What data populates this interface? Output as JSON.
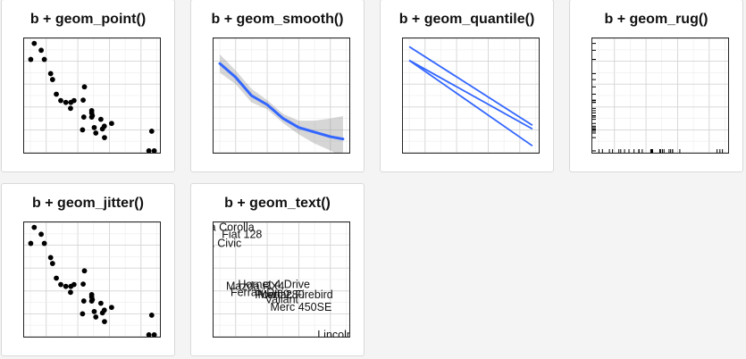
{
  "titles": {
    "point": "b + geom_point()",
    "smooth": "b + geom_smooth()",
    "quantile": "b + geom_quantile()",
    "rug": "b + geom_rug()",
    "jitter": "b + geom_jitter()",
    "text": "b + geom_text()"
  },
  "chart_data": [
    {
      "id": "point",
      "type": "scatter",
      "title": "b + geom_point()",
      "xlim": [
        1.3,
        5.6
      ],
      "ylim": [
        10,
        35
      ],
      "x": [
        1.51,
        1.62,
        1.84,
        1.94,
        2.14,
        2.2,
        2.32,
        2.46,
        2.62,
        2.77,
        2.78,
        2.88,
        3.15,
        3.17,
        3.19,
        3.21,
        3.44,
        3.44,
        3.44,
        3.46,
        3.52,
        3.57,
        3.73,
        3.78,
        3.84,
        3.845,
        4.07,
        5.25,
        5.34,
        5.42
      ],
      "y": [
        30.4,
        33.9,
        32.4,
        30.4,
        27.3,
        26.0,
        22.8,
        21.4,
        21.0,
        19.7,
        21.0,
        21.4,
        15.0,
        21.5,
        17.8,
        24.4,
        18.7,
        19.2,
        17.8,
        18.1,
        15.5,
        14.3,
        17.3,
        15.2,
        15.8,
        13.3,
        16.4,
        10.4,
        14.7,
        10.4
      ],
      "color": "#000000"
    },
    {
      "id": "smooth",
      "type": "line",
      "title": "b + geom_smooth()",
      "xlim": [
        1.3,
        5.6
      ],
      "ylim": [
        10,
        35
      ],
      "x": [
        1.5,
        2.0,
        2.5,
        3.0,
        3.5,
        4.0,
        4.5,
        5.0,
        5.4
      ],
      "y": [
        29.5,
        26.5,
        22.5,
        20.5,
        17.5,
        15.5,
        14.5,
        13.5,
        13.0
      ],
      "ci_upper": [
        31.5,
        28.0,
        24.0,
        21.5,
        18.5,
        17.0,
        17.0,
        17.5,
        18.0
      ],
      "ci_lower": [
        27.5,
        25.0,
        21.0,
        19.5,
        16.5,
        14.0,
        12.0,
        10.5,
        9.0
      ],
      "line_color": "#3366ff",
      "ribbon_color": "#999999"
    },
    {
      "id": "quantile",
      "type": "line",
      "title": "b + geom_quantile()",
      "xlim": [
        1.3,
        5.6
      ],
      "ylim": [
        10,
        35
      ],
      "series": [
        {
          "x": [
            1.5,
            5.4
          ],
          "y": [
            33.2,
            16.0
          ]
        },
        {
          "x": [
            1.5,
            5.4
          ],
          "y": [
            30.2,
            15.2
          ]
        },
        {
          "x": [
            1.5,
            5.4
          ],
          "y": [
            30.2,
            11.5
          ]
        }
      ],
      "line_color": "#3366ff"
    },
    {
      "id": "rug",
      "type": "scatter",
      "title": "b + geom_rug()",
      "xlim": [
        1.3,
        5.6
      ],
      "ylim": [
        10,
        35
      ],
      "x": [
        1.51,
        1.62,
        1.84,
        1.94,
        2.14,
        2.2,
        2.32,
        2.46,
        2.62,
        2.77,
        2.78,
        2.88,
        3.15,
        3.17,
        3.19,
        3.21,
        3.44,
        3.44,
        3.44,
        3.46,
        3.52,
        3.57,
        3.73,
        3.78,
        3.84,
        3.845,
        4.07,
        5.25,
        5.34,
        5.42
      ],
      "y": [
        30.4,
        33.9,
        32.4,
        30.4,
        27.3,
        26.0,
        22.8,
        21.4,
        21.0,
        19.7,
        21.0,
        21.4,
        15.0,
        21.5,
        17.8,
        24.4,
        18.7,
        19.2,
        17.8,
        18.1,
        15.5,
        14.3,
        17.3,
        15.2,
        15.8,
        13.3,
        16.4,
        10.4,
        14.7,
        10.4
      ],
      "color": "#000000"
    },
    {
      "id": "jitter",
      "type": "scatter",
      "title": "b + geom_jitter()",
      "xlim": [
        1.3,
        5.6
      ],
      "ylim": [
        10,
        35
      ],
      "x": [
        1.51,
        1.62,
        1.84,
        1.94,
        2.14,
        2.2,
        2.32,
        2.46,
        2.62,
        2.77,
        2.78,
        2.88,
        3.15,
        3.17,
        3.19,
        3.21,
        3.44,
        3.44,
        3.44,
        3.46,
        3.52,
        3.57,
        3.73,
        3.78,
        3.84,
        3.845,
        4.07,
        5.25,
        5.34,
        5.42
      ],
      "y": [
        30.4,
        33.9,
        32.4,
        30.4,
        27.3,
        26.0,
        22.8,
        21.4,
        21.0,
        19.7,
        21.0,
        21.4,
        15.0,
        21.5,
        17.8,
        24.4,
        18.7,
        19.2,
        17.8,
        18.1,
        15.5,
        14.3,
        17.3,
        15.2,
        15.8,
        13.3,
        16.4,
        10.4,
        14.7,
        10.4
      ],
      "color": "#000000"
    },
    {
      "id": "text",
      "type": "scatter",
      "title": "b + geom_text()",
      "xlim": [
        1.3,
        5.6
      ],
      "ylim": [
        10,
        35
      ],
      "labels": [
        {
          "text": "ta Corolla",
          "x": 1.835,
          "y": 33.9
        },
        {
          "text": "Fiat 128",
          "x": 2.2,
          "y": 32.4
        },
        {
          "text": "la Civic",
          "x": 1.615,
          "y": 30.4
        },
        {
          "text": "Mazda RX4",
          "x": 2.62,
          "y": 21.0
        },
        {
          "text": "Hornet 4 Drive",
          "x": 3.215,
          "y": 21.4
        },
        {
          "text": "Ferrari Dino",
          "x": 2.77,
          "y": 19.7
        },
        {
          "text": "Pontiac Firebird",
          "x": 3.845,
          "y": 19.2
        },
        {
          "text": "Merc 280",
          "x": 3.44,
          "y": 19.2
        },
        {
          "text": "Valiant",
          "x": 3.46,
          "y": 18.1
        },
        {
          "text": "Merc 450SE",
          "x": 4.07,
          "y": 16.4
        },
        {
          "text": "Lincoln Co",
          "x": 5.424,
          "y": 10.4
        }
      ]
    }
  ]
}
